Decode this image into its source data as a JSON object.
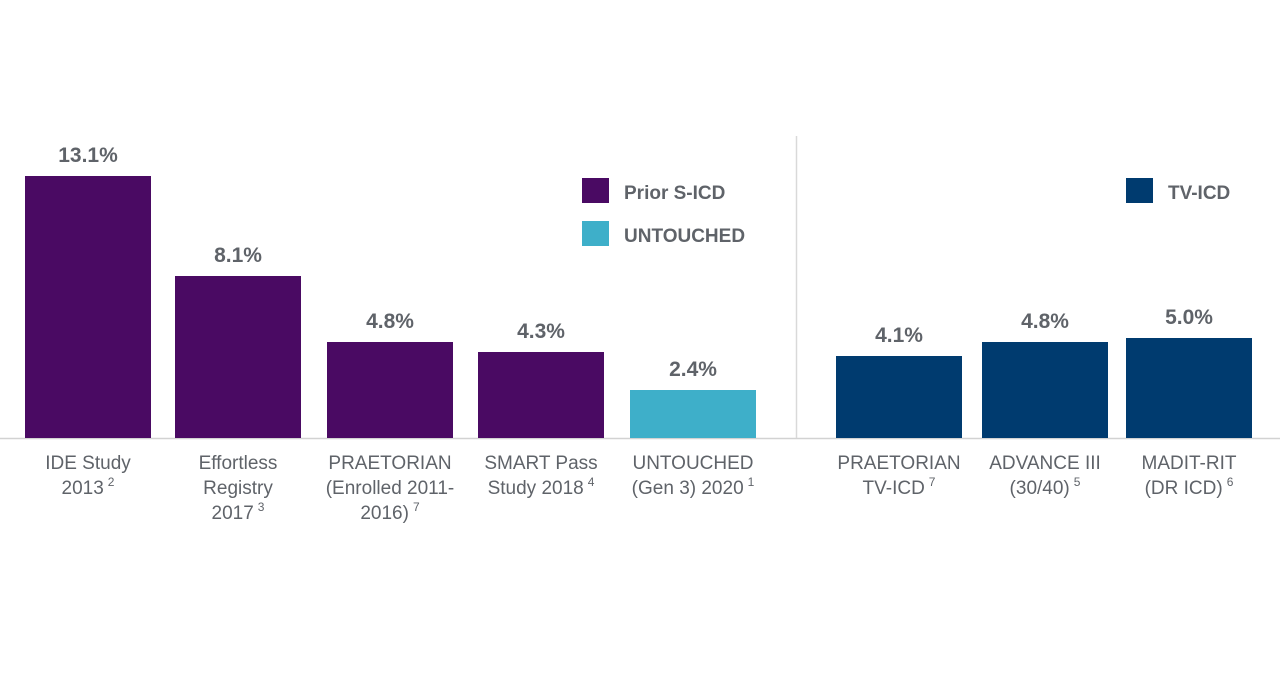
{
  "chart_data": {
    "type": "bar",
    "unit": "%",
    "ylim": [
      0,
      13.1
    ],
    "grid": false,
    "colors": {
      "Prior S-ICD": "#4a0a63",
      "UNTOUCHED": "#3eafc9",
      "TV-ICD": "#003b6f"
    },
    "legend": [
      {
        "name": "Prior S-ICD",
        "color": "#4a0a63",
        "panel": "left",
        "position": "top-right"
      },
      {
        "name": "UNTOUCHED",
        "color": "#3eafc9",
        "panel": "left",
        "position": "top-right"
      },
      {
        "name": "TV-ICD",
        "color": "#003b6f",
        "panel": "right",
        "position": "top-right"
      }
    ],
    "bars": [
      {
        "lines": [
          "IDE Study",
          "2013"
        ],
        "ref": "2",
        "value": 13.1,
        "label": "13.1%",
        "series": "Prior S-ICD"
      },
      {
        "lines": [
          "Effortless",
          "Registry",
          "2017"
        ],
        "ref": "3",
        "value": 8.1,
        "label": "8.1%",
        "series": "Prior S-ICD"
      },
      {
        "lines": [
          "PRAETORIAN",
          "(Enrolled 2011-",
          "2016)"
        ],
        "ref": "7",
        "value": 4.8,
        "label": "4.8%",
        "series": "Prior S-ICD"
      },
      {
        "lines": [
          "SMART Pass",
          "Study 2018"
        ],
        "ref": "4",
        "value": 4.3,
        "label": "4.3%",
        "series": "Prior S-ICD"
      },
      {
        "lines": [
          "UNTOUCHED",
          "(Gen 3) 2020"
        ],
        "ref": "1",
        "value": 2.4,
        "label": "2.4%",
        "series": "UNTOUCHED"
      },
      {
        "lines": [
          "PRAETORIAN",
          "TV-ICD"
        ],
        "ref": "7",
        "value": 4.1,
        "label": "4.1%",
        "series": "TV-ICD"
      },
      {
        "lines": [
          "ADVANCE III",
          "(30/40)"
        ],
        "ref": "5",
        "value": 4.8,
        "label": "4.8%",
        "series": "TV-ICD"
      },
      {
        "lines": [
          "MADIT-RIT",
          "(DR ICD)"
        ],
        "ref": "6",
        "value": 5.0,
        "label": "5.0%",
        "series": "TV-ICD"
      }
    ]
  }
}
